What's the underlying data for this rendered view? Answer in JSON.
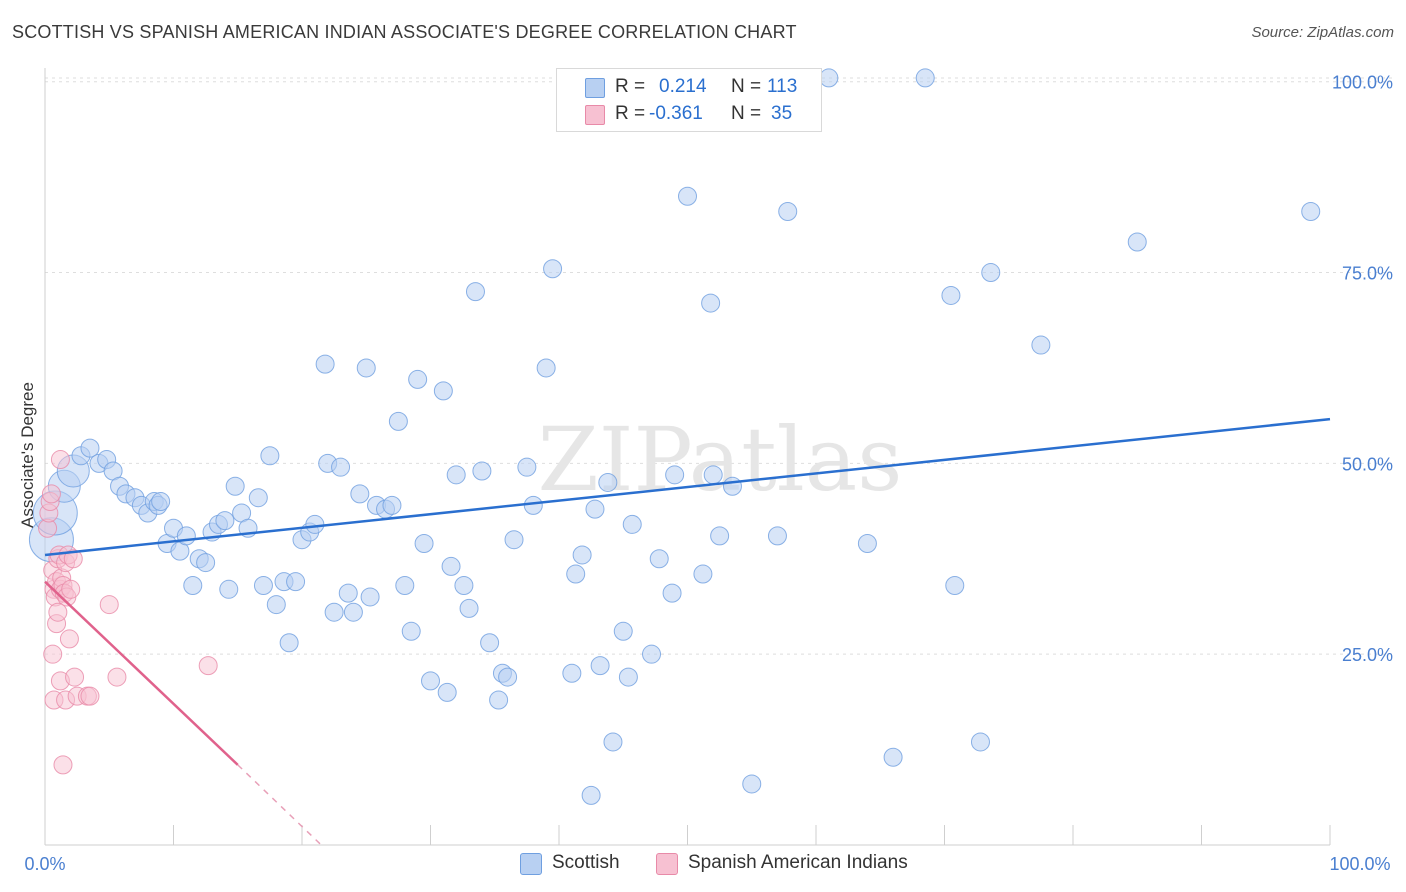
{
  "title": "SCOTTISH VS SPANISH AMERICAN INDIAN ASSOCIATE'S DEGREE CORRELATION CHART",
  "source": "Source: ZipAtlas.com",
  "watermark": "ZIPatlas",
  "legend": {
    "rows": [
      {
        "name": "Scottish",
        "r_label": "R =",
        "r_value": "0.214",
        "n_label": "N =",
        "n_value": "113",
        "fill": "#b8d0f2",
        "stroke": "#6f9fe0"
      },
      {
        "name": "Spanish American Indians",
        "r_label": "R =",
        "r_value": "-0.361",
        "n_label": "N =",
        "n_value": "35",
        "fill": "#f7c1d2",
        "stroke": "#e88aa8"
      }
    ]
  },
  "chart_data": {
    "type": "scatter",
    "title": "SCOTTISH VS SPANISH AMERICAN INDIAN ASSOCIATE'S DEGREE CORRELATION CHART",
    "xlabel": "",
    "ylabel": "Associate's Degree",
    "xlim": [
      0,
      100
    ],
    "ylim": [
      0,
      102
    ],
    "x_tick_labels": [
      "0.0%",
      "100.0%"
    ],
    "y_tick_labels": [
      "25.0%",
      "50.0%",
      "75.0%",
      "100.0%"
    ],
    "y_tick_values": [
      25,
      50,
      75,
      100
    ],
    "grid": true,
    "series": [
      {
        "name": "Scottish",
        "color": "#6f9fe0",
        "fill": "#b8d0f2",
        "trend": {
          "x": [
            0,
            100
          ],
          "y": [
            38.0,
            55.8
          ],
          "color": "#2a6fcf"
        },
        "points": [
          {
            "x": 0.5,
            "y": 40,
            "s": 3
          },
          {
            "x": 0.8,
            "y": 43.5,
            "s": 3
          },
          {
            "x": 1.5,
            "y": 47,
            "s": 2
          },
          {
            "x": 2.2,
            "y": 49,
            "s": 2
          },
          {
            "x": 2.8,
            "y": 51,
            "s": 1
          },
          {
            "x": 3.5,
            "y": 52,
            "s": 1
          },
          {
            "x": 4.2,
            "y": 50,
            "s": 1
          },
          {
            "x": 4.8,
            "y": 50.5,
            "s": 1
          },
          {
            "x": 5.3,
            "y": 49,
            "s": 1
          },
          {
            "x": 5.8,
            "y": 47,
            "s": 1
          },
          {
            "x": 6.3,
            "y": 46,
            "s": 1
          },
          {
            "x": 7,
            "y": 45.5,
            "s": 1
          },
          {
            "x": 7.5,
            "y": 44.5,
            "s": 1
          },
          {
            "x": 8,
            "y": 43.5,
            "s": 1
          },
          {
            "x": 8.5,
            "y": 45,
            "s": 1
          },
          {
            "x": 8.8,
            "y": 44.5,
            "s": 1
          },
          {
            "x": 9,
            "y": 45,
            "s": 1
          },
          {
            "x": 9.5,
            "y": 39.5,
            "s": 1
          },
          {
            "x": 10,
            "y": 41.5,
            "s": 1
          },
          {
            "x": 10.5,
            "y": 38.5,
            "s": 1
          },
          {
            "x": 11,
            "y": 40.5,
            "s": 1
          },
          {
            "x": 11.5,
            "y": 34,
            "s": 1
          },
          {
            "x": 12,
            "y": 37.5,
            "s": 1
          },
          {
            "x": 12.5,
            "y": 37,
            "s": 1
          },
          {
            "x": 13,
            "y": 41,
            "s": 1
          },
          {
            "x": 13.5,
            "y": 42,
            "s": 1
          },
          {
            "x": 14,
            "y": 42.5,
            "s": 1
          },
          {
            "x": 14.3,
            "y": 33.5,
            "s": 1
          },
          {
            "x": 14.8,
            "y": 47,
            "s": 1
          },
          {
            "x": 15.3,
            "y": 43.5,
            "s": 1
          },
          {
            "x": 15.8,
            "y": 41.5,
            "s": 1
          },
          {
            "x": 16.6,
            "y": 45.5,
            "s": 1
          },
          {
            "x": 17,
            "y": 34,
            "s": 1
          },
          {
            "x": 17.5,
            "y": 51,
            "s": 1
          },
          {
            "x": 18,
            "y": 31.5,
            "s": 1
          },
          {
            "x": 18.6,
            "y": 34.5,
            "s": 1
          },
          {
            "x": 19,
            "y": 26.5,
            "s": 1
          },
          {
            "x": 19.5,
            "y": 34.5,
            "s": 1
          },
          {
            "x": 20,
            "y": 40,
            "s": 1
          },
          {
            "x": 20.6,
            "y": 41,
            "s": 1
          },
          {
            "x": 21,
            "y": 42,
            "s": 1
          },
          {
            "x": 21.8,
            "y": 63,
            "s": 1
          },
          {
            "x": 22,
            "y": 50,
            "s": 1
          },
          {
            "x": 22.5,
            "y": 30.5,
            "s": 1
          },
          {
            "x": 23,
            "y": 49.5,
            "s": 1
          },
          {
            "x": 23.6,
            "y": 33,
            "s": 1
          },
          {
            "x": 24,
            "y": 30.5,
            "s": 1
          },
          {
            "x": 24.5,
            "y": 46,
            "s": 1
          },
          {
            "x": 25,
            "y": 62.5,
            "s": 1
          },
          {
            "x": 25.3,
            "y": 32.5,
            "s": 1
          },
          {
            "x": 25.8,
            "y": 44.5,
            "s": 1
          },
          {
            "x": 26.5,
            "y": 44,
            "s": 1
          },
          {
            "x": 27,
            "y": 44.5,
            "s": 1
          },
          {
            "x": 27.5,
            "y": 55.5,
            "s": 1
          },
          {
            "x": 28,
            "y": 34,
            "s": 1
          },
          {
            "x": 28.5,
            "y": 28,
            "s": 1
          },
          {
            "x": 29,
            "y": 61,
            "s": 1
          },
          {
            "x": 29.5,
            "y": 39.5,
            "s": 1
          },
          {
            "x": 30,
            "y": 21.5,
            "s": 1
          },
          {
            "x": 31,
            "y": 59.5,
            "s": 1
          },
          {
            "x": 31.3,
            "y": 20,
            "s": 1
          },
          {
            "x": 31.6,
            "y": 36.5,
            "s": 1
          },
          {
            "x": 32,
            "y": 48.5,
            "s": 1
          },
          {
            "x": 32.6,
            "y": 34,
            "s": 1
          },
          {
            "x": 33,
            "y": 31,
            "s": 1
          },
          {
            "x": 33.5,
            "y": 72.5,
            "s": 1
          },
          {
            "x": 34,
            "y": 49,
            "s": 1
          },
          {
            "x": 34.6,
            "y": 26.5,
            "s": 1
          },
          {
            "x": 35.3,
            "y": 19,
            "s": 1
          },
          {
            "x": 35.6,
            "y": 22.5,
            "s": 1
          },
          {
            "x": 36,
            "y": 22,
            "s": 1
          },
          {
            "x": 36.5,
            "y": 40,
            "s": 1
          },
          {
            "x": 37.5,
            "y": 49.5,
            "s": 1
          },
          {
            "x": 38,
            "y": 44.5,
            "s": 1
          },
          {
            "x": 39,
            "y": 62.5,
            "s": 1
          },
          {
            "x": 39.5,
            "y": 75.5,
            "s": 1
          },
          {
            "x": 41,
            "y": 22.5,
            "s": 1
          },
          {
            "x": 41.3,
            "y": 35.5,
            "s": 1
          },
          {
            "x": 41.8,
            "y": 38,
            "s": 1
          },
          {
            "x": 42.5,
            "y": 6.5,
            "s": 1
          },
          {
            "x": 42.8,
            "y": 44,
            "s": 1
          },
          {
            "x": 43.2,
            "y": 23.5,
            "s": 1
          },
          {
            "x": 43.8,
            "y": 47.5,
            "s": 1
          },
          {
            "x": 44.2,
            "y": 13.5,
            "s": 1
          },
          {
            "x": 45,
            "y": 28,
            "s": 1
          },
          {
            "x": 45.4,
            "y": 22,
            "s": 1
          },
          {
            "x": 45.7,
            "y": 42,
            "s": 1
          },
          {
            "x": 47.2,
            "y": 25,
            "s": 1
          },
          {
            "x": 47.8,
            "y": 37.5,
            "s": 1
          },
          {
            "x": 48.8,
            "y": 33,
            "s": 1
          },
          {
            "x": 49,
            "y": 48.5,
            "s": 1
          },
          {
            "x": 50,
            "y": 85,
            "s": 1
          },
          {
            "x": 51.2,
            "y": 35.5,
            "s": 1
          },
          {
            "x": 51.8,
            "y": 71,
            "s": 1
          },
          {
            "x": 52,
            "y": 48.5,
            "s": 1
          },
          {
            "x": 52.5,
            "y": 40.5,
            "s": 1
          },
          {
            "x": 53.5,
            "y": 47,
            "s": 1
          },
          {
            "x": 55,
            "y": 8,
            "s": 1
          },
          {
            "x": 57,
            "y": 40.5,
            "s": 1
          },
          {
            "x": 57.8,
            "y": 83,
            "s": 1
          },
          {
            "x": 61,
            "y": 100.5,
            "s": 1
          },
          {
            "x": 64,
            "y": 39.5,
            "s": 1
          },
          {
            "x": 66,
            "y": 11.5,
            "s": 1
          },
          {
            "x": 68.5,
            "y": 100.5,
            "s": 1
          },
          {
            "x": 70.5,
            "y": 72,
            "s": 1
          },
          {
            "x": 70.8,
            "y": 34,
            "s": 1
          },
          {
            "x": 72.8,
            "y": 13.5,
            "s": 1
          },
          {
            "x": 73.6,
            "y": 75,
            "s": 1
          },
          {
            "x": 77.5,
            "y": 65.5,
            "s": 1
          },
          {
            "x": 85,
            "y": 79,
            "s": 1
          },
          {
            "x": 98.5,
            "y": 83,
            "s": 1
          }
        ]
      },
      {
        "name": "Spanish American Indians",
        "color": "#e88aa8",
        "fill": "#f7c1d2",
        "trend": {
          "x": [
            0,
            15
          ],
          "y": [
            34.5,
            10.5
          ],
          "color": "#e0628c"
        },
        "trend_dashed": {
          "x": [
            15,
            21.5
          ],
          "y": [
            10.5,
            0
          ],
          "color": "#e8a0b8"
        },
        "points": [
          {
            "x": 0.2,
            "y": 41.5
          },
          {
            "x": 0.3,
            "y": 43.5
          },
          {
            "x": 0.4,
            "y": 45
          },
          {
            "x": 0.5,
            "y": 46
          },
          {
            "x": 0.6,
            "y": 36
          },
          {
            "x": 0.7,
            "y": 33.5
          },
          {
            "x": 0.8,
            "y": 32.5
          },
          {
            "x": 0.9,
            "y": 34.5
          },
          {
            "x": 1,
            "y": 37.5
          },
          {
            "x": 1.1,
            "y": 38
          },
          {
            "x": 1.2,
            "y": 33.5
          },
          {
            "x": 1.3,
            "y": 35
          },
          {
            "x": 1.4,
            "y": 34
          },
          {
            "x": 1.5,
            "y": 33
          },
          {
            "x": 1.6,
            "y": 37
          },
          {
            "x": 1.7,
            "y": 32.5
          },
          {
            "x": 1.8,
            "y": 38
          },
          {
            "x": 2,
            "y": 33.5
          },
          {
            "x": 0.6,
            "y": 25
          },
          {
            "x": 0.9,
            "y": 29
          },
          {
            "x": 1,
            "y": 30.5
          },
          {
            "x": 1.9,
            "y": 27
          },
          {
            "x": 2.2,
            "y": 37.5
          },
          {
            "x": 0.7,
            "y": 19
          },
          {
            "x": 1.2,
            "y": 21.5
          },
          {
            "x": 1.6,
            "y": 19
          },
          {
            "x": 2.3,
            "y": 22
          },
          {
            "x": 2.5,
            "y": 19.5
          },
          {
            "x": 3.3,
            "y": 19.5
          },
          {
            "x": 3.5,
            "y": 19.5
          },
          {
            "x": 5.6,
            "y": 22
          },
          {
            "x": 5,
            "y": 31.5
          },
          {
            "x": 12.7,
            "y": 23.5
          },
          {
            "x": 1.4,
            "y": 10.5
          },
          {
            "x": 1.2,
            "y": 50.5
          }
        ]
      }
    ]
  },
  "bottom_legend": {
    "scottish": "Scottish",
    "spanish": "Spanish American Indians"
  }
}
